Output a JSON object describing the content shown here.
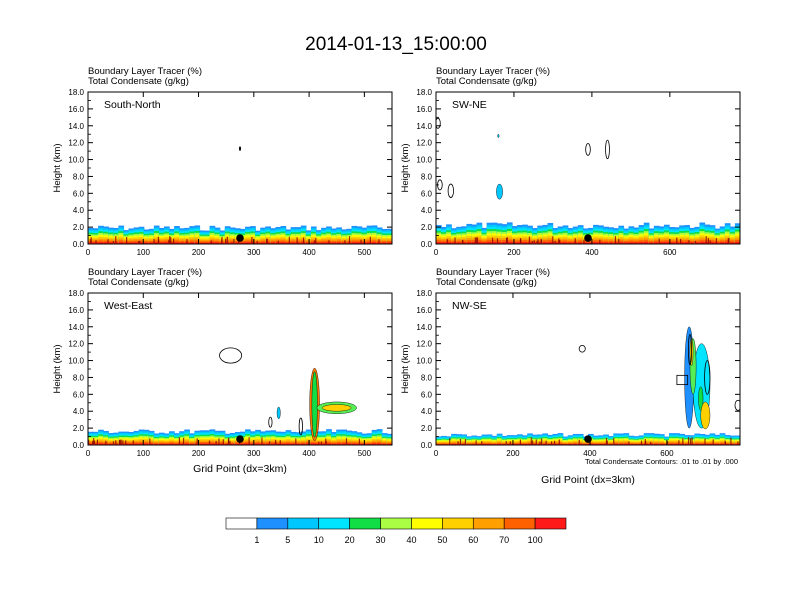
{
  "title": "2014-01-13_15:00:00",
  "chart_data": [
    {
      "type": "heatmap",
      "panel_label": "South-North",
      "field_labels": [
        "Boundary Layer Tracer   (%)",
        "Total Condensate   (g/kg)"
      ],
      "ylabel": "Height (km)",
      "xlabel": "",
      "xlim": [
        0,
        550
      ],
      "xticks": [
        0,
        100,
        200,
        300,
        400,
        500
      ],
      "ylim": [
        0,
        18
      ],
      "yticks": [
        "0.0",
        "2.0",
        "4.0",
        "6.0",
        "8.0",
        "10.0",
        "12.0",
        "14.0",
        "16.0",
        "18.0"
      ],
      "marker_x": 275,
      "bl_top_km": 1.9,
      "blobs": [
        {
          "x": 275,
          "y": 11.3,
          "rx": 1.5,
          "ry": 0.25,
          "shape": "filled",
          "fill": "#000000"
        }
      ]
    },
    {
      "type": "heatmap",
      "panel_label": "SW-NE",
      "field_labels": [
        "Boundary Layer Tracer   (%)",
        "Total Condensate   (g/kg)"
      ],
      "ylabel": "Height (km)",
      "xlabel": "",
      "xlim": [
        0,
        780
      ],
      "xticks": [
        0,
        200,
        400,
        600
      ],
      "ylim": [
        0,
        18
      ],
      "yticks": [
        "0.0",
        "2.0",
        "4.0",
        "6.0",
        "8.0",
        "10.0",
        "12.0",
        "14.0",
        "16.0",
        "18.0"
      ],
      "marker_x": 390,
      "bl_top_km": 2.2,
      "blobs": [
        {
          "x": 163,
          "y": 6.2,
          "rx": 8,
          "ry": 0.9,
          "shape": "filled",
          "fill": "#00c8ff"
        },
        {
          "x": 160,
          "y": 12.8,
          "rx": 2,
          "ry": 0.2,
          "shape": "filled",
          "fill": "#00c8ff"
        },
        {
          "x": 390,
          "y": 11.2,
          "rx": 6,
          "ry": 0.7,
          "shape": "outline",
          "fill": "none"
        },
        {
          "x": 440,
          "y": 11.2,
          "rx": 5,
          "ry": 1.1,
          "shape": "outline",
          "fill": "none"
        },
        {
          "x": 10,
          "y": 7.0,
          "rx": 6,
          "ry": 0.6,
          "shape": "outline",
          "fill": "none"
        },
        {
          "x": 38,
          "y": 6.3,
          "rx": 7,
          "ry": 0.8,
          "shape": "outline",
          "fill": "none"
        },
        {
          "x": 5,
          "y": 14.3,
          "rx": 6,
          "ry": 0.6,
          "shape": "outline",
          "fill": "none"
        }
      ]
    },
    {
      "type": "heatmap",
      "panel_label": "West-East",
      "field_labels": [
        "Boundary Layer Tracer   (%)",
        "Total Condensate   (g/kg)"
      ],
      "ylabel": "Height (km)",
      "xlabel": "Grid Point (dx=3km)",
      "xlim": [
        0,
        550
      ],
      "xticks": [
        0,
        100,
        200,
        300,
        400,
        500
      ],
      "ylim": [
        0,
        18
      ],
      "yticks": [
        "0.0",
        "2.0",
        "4.0",
        "6.0",
        "8.0",
        "10.0",
        "12.0",
        "14.0",
        "16.0",
        "18.0"
      ],
      "marker_x": 275,
      "bl_top_km": 1.6,
      "blobs": [
        {
          "x": 258,
          "y": 10.6,
          "rx": 20,
          "ry": 0.9,
          "shape": "outline",
          "fill": "none"
        },
        {
          "x": 410,
          "y": 4.8,
          "rx": 9,
          "ry": 4.3,
          "shape": "filled",
          "fill": "#ff7a00"
        },
        {
          "x": 410,
          "y": 4.8,
          "rx": 5,
          "ry": 3.9,
          "shape": "filled",
          "fill": "#11dd44"
        },
        {
          "x": 450,
          "y": 4.4,
          "rx": 36,
          "ry": 0.7,
          "shape": "filled",
          "fill": "#55ee55"
        },
        {
          "x": 450,
          "y": 4.4,
          "rx": 26,
          "ry": 0.4,
          "shape": "filled",
          "fill": "#ffd000"
        },
        {
          "x": 345,
          "y": 3.8,
          "rx": 3,
          "ry": 0.7,
          "shape": "filled",
          "fill": "#00c8ff"
        },
        {
          "x": 330,
          "y": 2.7,
          "rx": 3,
          "ry": 0.6,
          "shape": "outline",
          "fill": "none"
        },
        {
          "x": 385,
          "y": 2.2,
          "rx": 3,
          "ry": 1.0,
          "shape": "outline",
          "fill": "none"
        }
      ]
    },
    {
      "type": "heatmap",
      "panel_label": "NW-SE",
      "field_labels": [
        "Boundary Layer Tracer   (%)",
        "Total Condensate   (g/kg)"
      ],
      "ylabel": "Height (km)",
      "xlabel": "Grid Point (dx=3km)",
      "xlim": [
        0,
        790
      ],
      "xticks": [
        0,
        200,
        400,
        600
      ],
      "ylim": [
        0,
        18
      ],
      "yticks": [
        "0.0",
        "2.0",
        "4.0",
        "6.0",
        "8.0",
        "10.0",
        "12.0",
        "14.0",
        "16.0",
        "18.0"
      ],
      "marker_x": 395,
      "bl_top_km": 1.2,
      "contour_note": "Total Condensate Contours: .01 to .01 by .000",
      "blobs": [
        {
          "x": 658,
          "y": 8.0,
          "rx": 12,
          "ry": 6.0,
          "shape": "filled",
          "fill": "#1e90ff"
        },
        {
          "x": 690,
          "y": 7.0,
          "rx": 22,
          "ry": 5.0,
          "shape": "filled",
          "fill": "#00e5ff"
        },
        {
          "x": 668,
          "y": 9.3,
          "rx": 8,
          "ry": 3.3,
          "shape": "filled",
          "fill": "#55ee55"
        },
        {
          "x": 664,
          "y": 11.0,
          "rx": 4,
          "ry": 1.6,
          "shape": "filled",
          "fill": "#ffd000"
        },
        {
          "x": 688,
          "y": 5.5,
          "rx": 6,
          "ry": 1.4,
          "shape": "filled",
          "fill": "#11dd44"
        },
        {
          "x": 705,
          "y": 8.0,
          "rx": 7,
          "ry": 2.0,
          "shape": "outline",
          "fill": "none"
        },
        {
          "x": 660,
          "y": 11.3,
          "rx": 4,
          "ry": 1.8,
          "shape": "outline",
          "fill": "none"
        },
        {
          "x": 640,
          "y": 7.7,
          "rx": 14,
          "ry": 0.55,
          "shape": "box",
          "fill": "none"
        },
        {
          "x": 380,
          "y": 11.4,
          "rx": 8,
          "ry": 0.4,
          "shape": "outline",
          "fill": "none"
        },
        {
          "x": 785,
          "y": 4.7,
          "rx": 8,
          "ry": 0.6,
          "shape": "outline",
          "fill": "none"
        },
        {
          "x": 700,
          "y": 3.5,
          "rx": 12,
          "ry": 1.6,
          "shape": "filled",
          "fill": "#ffd000"
        }
      ]
    }
  ],
  "colorbar": {
    "colors": [
      "#ffffff",
      "#1e90ff",
      "#00c8ff",
      "#00e5ff",
      "#11dd44",
      "#aaff44",
      "#ffff00",
      "#ffd000",
      "#ffa000",
      "#ff6000",
      "#ff1a1a"
    ],
    "labels": [
      "1",
      "5",
      "10",
      "20",
      "30",
      "40",
      "50",
      "60",
      "70",
      "100"
    ]
  }
}
